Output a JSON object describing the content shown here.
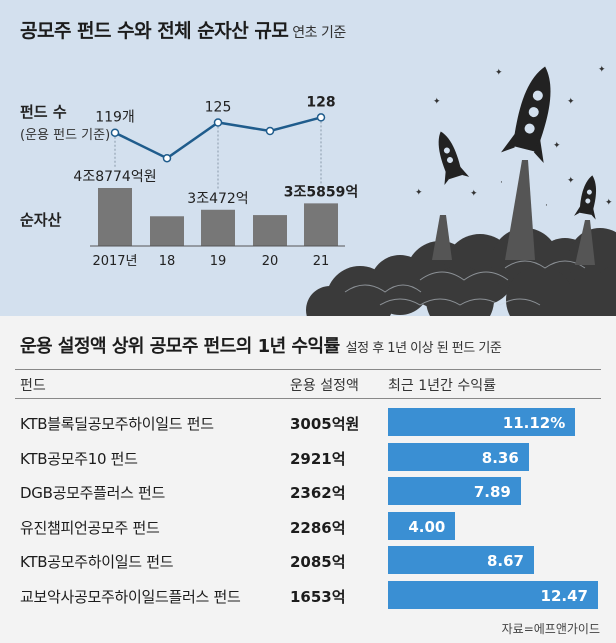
{
  "top": {
    "title": "공모주 펀드 수와 전체 순자산 규모",
    "title_note": "연초 기준",
    "fund_count_label": "펀드 수",
    "fund_count_note": "(운용 펀드 기준)",
    "net_assets_label": "순자산"
  },
  "bottom": {
    "title": "운용 설정액 상위 공모주 펀드의 1년 수익률",
    "title_note": "설정 후 1년 이상 된 펀드 기준",
    "col_fund": "펀드",
    "col_amount": "운용 설정액",
    "col_return": "최근 1년간 수익률",
    "source": "자료=에프앤가이드"
  },
  "colors": {
    "line": "#1f5c8c",
    "bar_assets": "#777777",
    "bar_return": "#3a8fd3",
    "top_bg": "#d3e0ee"
  },
  "chart_data": [
    {
      "type": "line",
      "x": [
        "2017년",
        "18",
        "19",
        "20",
        "21"
      ],
      "values": [
        119,
        104,
        125,
        120,
        128
      ],
      "point_labels": [
        "119개",
        "",
        "125",
        "",
        "128"
      ]
    },
    {
      "type": "bar",
      "categories": [
        "2017년",
        "18",
        "19",
        "20",
        "21"
      ],
      "values": [
        48774,
        25000,
        30472,
        26000,
        35859
      ],
      "value_labels": [
        "4조8774억원",
        "",
        "3조472억",
        "",
        "3조5859억"
      ]
    },
    {
      "type": "bar",
      "categories": [
        "KTB블록딜공모주하이일드 펀드",
        "KTB공모주10 펀드",
        "DGB공모주플러스 펀드",
        "유진챔피언공모주 펀드",
        "KTB공모주하이일드 펀드",
        "교보악사공모주하이일드플러스 펀드"
      ],
      "amounts": [
        "3005억원",
        "2921억",
        "2362억",
        "2286억",
        "2085억",
        "1653억"
      ],
      "values": [
        11.12,
        8.36,
        7.89,
        4.0,
        8.67,
        12.47
      ],
      "value_labels": [
        "11.12%",
        "8.36",
        "7.89",
        "4.00",
        "8.67",
        "12.47"
      ]
    }
  ]
}
